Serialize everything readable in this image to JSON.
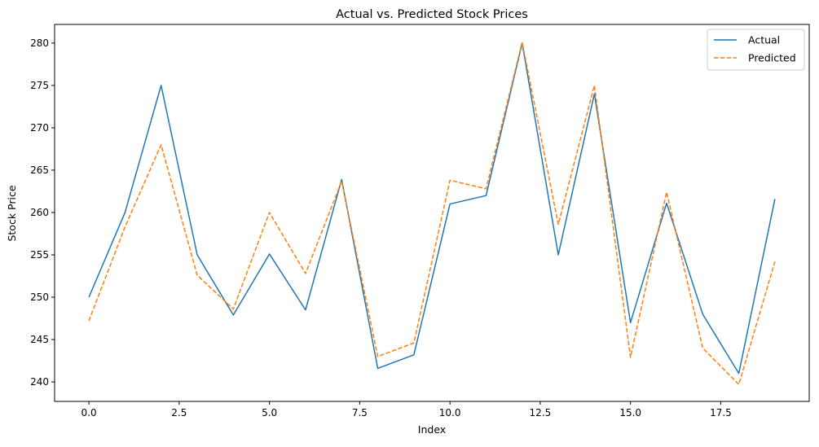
{
  "chart_data": {
    "type": "line",
    "title": "Actual vs. Predicted Stock Prices",
    "xlabel": "Index",
    "ylabel": "Stock Price",
    "xlim": [
      -0.95,
      19.95
    ],
    "ylim": [
      237.7,
      282.2
    ],
    "xticks": [
      0.0,
      2.5,
      5.0,
      7.5,
      10.0,
      12.5,
      15.0,
      17.5
    ],
    "xtick_labels": [
      "0.0",
      "2.5",
      "5.0",
      "7.5",
      "10.0",
      "12.5",
      "15.0",
      "17.5"
    ],
    "yticks": [
      240,
      245,
      250,
      255,
      260,
      265,
      270,
      275,
      280
    ],
    "ytick_labels": [
      "240",
      "245",
      "250",
      "255",
      "260",
      "265",
      "270",
      "275",
      "280"
    ],
    "grid": false,
    "legend_position": "top-right",
    "x": [
      0,
      1,
      2,
      3,
      4,
      5,
      6,
      7,
      8,
      9,
      10,
      11,
      12,
      13,
      14,
      15,
      16,
      17,
      18,
      19
    ],
    "series": [
      {
        "name": "Actual",
        "color": "#1f77b4",
        "style": "solid",
        "values": [
          250.0,
          260.0,
          275.0,
          255.0,
          247.9,
          255.1,
          248.5,
          263.9,
          241.6,
          243.2,
          261.0,
          262.0,
          280.0,
          255.0,
          274.0,
          247.0,
          261.1,
          248.0,
          241.0,
          261.6
        ]
      },
      {
        "name": "Predicted",
        "color": "#ff7f0e",
        "style": "dashed",
        "values": [
          247.2,
          258.3,
          268.0,
          252.6,
          248.6,
          260.0,
          252.8,
          263.7,
          243.0,
          244.6,
          263.8,
          262.8,
          280.1,
          258.6,
          275.0,
          242.9,
          262.4,
          244.0,
          239.7,
          254.2
        ]
      }
    ]
  }
}
